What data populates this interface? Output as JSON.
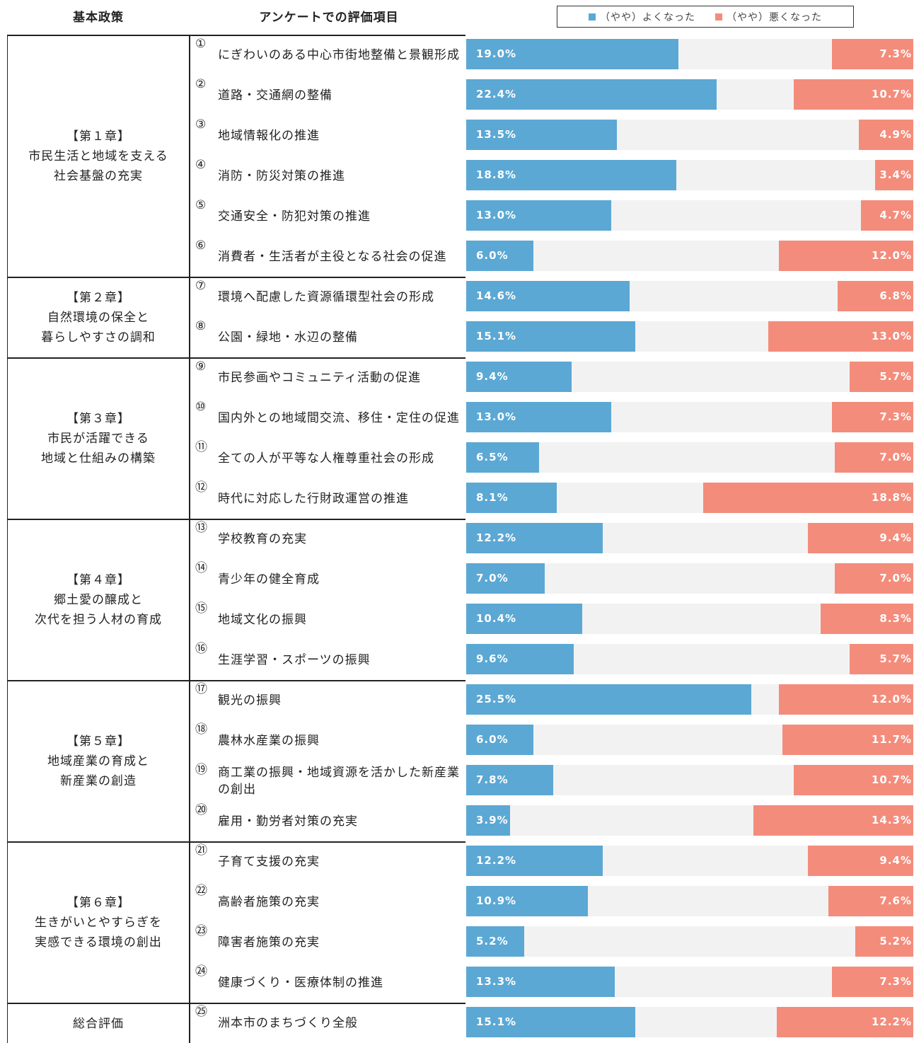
{
  "headers": {
    "policy": "基本政策",
    "items": "アンケートでの評価項目"
  },
  "legend": {
    "good": "（やや）よくなった",
    "bad": "（やや）悪くなった"
  },
  "colors": {
    "good": "#5ba8d4",
    "bad": "#f48c7c",
    "track": "#f2f2f2"
  },
  "chapters": [
    {
      "title": "【第１章】\n市民生活と地域を支える\n社会基盤の充実",
      "items": 6
    },
    {
      "title": "【第２章】\n自然環境の保全と\n暮らしやすさの調和",
      "items": 2
    },
    {
      "title": "【第３章】\n市民が活躍できる\n地域と仕組みの構築",
      "items": 4
    },
    {
      "title": "【第４章】\n郷土愛の醸成と\n次代を担う人材の育成",
      "items": 4
    },
    {
      "title": "【第５章】\n地域産業の育成と\n新産業の創造",
      "items": 4
    },
    {
      "title": "【第６章】\n生きがいとやすらぎを\n実感できる環境の創出",
      "items": 4
    },
    {
      "title": "総合評価",
      "items": 1
    }
  ],
  "chart_data": {
    "type": "bar",
    "orientation": "horizontal",
    "categories": [
      {
        "num": "①",
        "label": "にぎわいのある中心市街地整備と景観形成"
      },
      {
        "num": "②",
        "label": "道路・交通網の整備"
      },
      {
        "num": "③",
        "label": "地域情報化の推進"
      },
      {
        "num": "④",
        "label": "消防・防災対策の推進"
      },
      {
        "num": "⑤",
        "label": "交通安全・防犯対策の推進"
      },
      {
        "num": "⑥",
        "label": "消費者・生活者が主役となる社会の促進"
      },
      {
        "num": "⑦",
        "label": "環境へ配慮した資源循環型社会の形成"
      },
      {
        "num": "⑧",
        "label": "公園・緑地・水辺の整備"
      },
      {
        "num": "⑨",
        "label": "市民参画やコミュニティ活動の促進"
      },
      {
        "num": "⑩",
        "label": "国内外との地域間交流、移住・定住の促進"
      },
      {
        "num": "⑪",
        "label": "全ての人が平等な人権尊重社会の形成"
      },
      {
        "num": "⑫",
        "label": "時代に対応した行財政運営の推進"
      },
      {
        "num": "⑬",
        "label": "学校教育の充実"
      },
      {
        "num": "⑭",
        "label": "青少年の健全育成"
      },
      {
        "num": "⑮",
        "label": "地域文化の振興"
      },
      {
        "num": "⑯",
        "label": "生涯学習・スポーツの振興"
      },
      {
        "num": "⑰",
        "label": "観光の振興"
      },
      {
        "num": "⑱",
        "label": "農林水産業の振興"
      },
      {
        "num": "⑲",
        "label": "商工業の振興・地域資源を活かした新産業の創出"
      },
      {
        "num": "⑳",
        "label": "雇用・勤労者対策の充実"
      },
      {
        "num": "㉑",
        "label": "子育て支援の充実"
      },
      {
        "num": "㉒",
        "label": "高齢者施策の充実"
      },
      {
        "num": "㉓",
        "label": "障害者施策の充実"
      },
      {
        "num": "㉔",
        "label": "健康づくり・医療体制の推進"
      },
      {
        "num": "㉕",
        "label": "洲本市のまちづくり全般"
      }
    ],
    "series": [
      {
        "name": "（やや）よくなった",
        "values": [
          19.0,
          22.4,
          13.5,
          18.8,
          13.0,
          6.0,
          14.6,
          15.1,
          9.4,
          13.0,
          6.5,
          8.1,
          12.2,
          7.0,
          10.4,
          9.6,
          25.5,
          6.0,
          7.8,
          3.9,
          12.2,
          10.9,
          5.2,
          13.3,
          15.1
        ]
      },
      {
        "name": "（やや）悪くなった",
        "values": [
          7.3,
          10.7,
          4.9,
          3.4,
          4.7,
          12.0,
          6.8,
          13.0,
          5.7,
          7.3,
          7.0,
          18.8,
          9.4,
          7.0,
          8.3,
          5.7,
          12.0,
          11.7,
          10.7,
          14.3,
          9.4,
          7.6,
          5.2,
          7.3,
          12.2
        ]
      }
    ],
    "value_format": "0.0%",
    "xlim": [
      0,
      40
    ],
    "legend_position": "top-right",
    "grid": false
  }
}
